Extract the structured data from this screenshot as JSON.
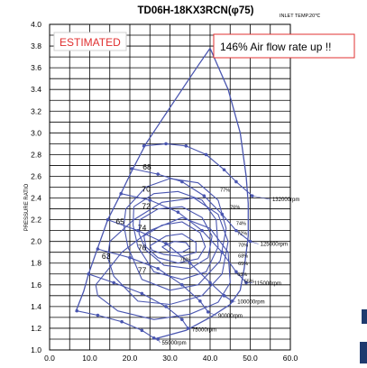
{
  "chart_data": {
    "type": "line",
    "title": "TD06H-18KX3RCN(φ75)",
    "subtitle": "INLET TEMP.20℃",
    "xlabel": "",
    "ylabel": "PRESSURE RATIO",
    "xlim": [
      0,
      60
    ],
    "ylim": [
      1.0,
      4.0
    ],
    "x_ticks": [
      "0.0",
      "10.0",
      "20.0",
      "30.0",
      "40.0",
      "50.0",
      "60.0"
    ],
    "y_ticks": [
      "1.0",
      "1.2",
      "1.4",
      "1.6",
      "1.8",
      "2.0",
      "2.2",
      "2.4",
      "2.6",
      "2.8",
      "3.0",
      "3.2",
      "3.4",
      "3.6",
      "3.8",
      "4.0"
    ],
    "grid": true,
    "annotations": {
      "estimated": "ESTIMATED",
      "airflow": "146% Air flow rate up !!"
    },
    "colors": {
      "curve": "#4a56b0",
      "estimated": "#e03030",
      "grid": "#000000"
    },
    "surge_line": [
      [
        6.5,
        1.35
      ],
      [
        8.5,
        1.54
      ],
      [
        9.7,
        1.7
      ],
      [
        11.8,
        1.92
      ],
      [
        14.5,
        2.2
      ],
      [
        17.5,
        2.42
      ],
      [
        20.5,
        2.65
      ],
      [
        24,
        2.9
      ],
      [
        28.5,
        3.15
      ],
      [
        33,
        3.4
      ],
      [
        37,
        3.62
      ],
      [
        40,
        3.78
      ]
    ],
    "choke_line": [
      [
        40,
        3.78
      ],
      [
        44.5,
        3.4
      ],
      [
        47.5,
        3.0
      ],
      [
        49,
        2.6
      ],
      [
        49.5,
        2.35
      ],
      [
        49.5,
        2.05
      ],
      [
        48.5,
        1.75
      ],
      [
        47.5,
        1.55
      ],
      [
        45,
        1.42
      ],
      [
        40,
        1.3
      ],
      [
        34,
        1.18
      ],
      [
        26,
        1.1
      ]
    ],
    "speed_lines": [
      {
        "label": "55000rpm",
        "label_pos": [
          28,
          1.05
        ],
        "points": [
          [
            6.8,
            1.36
          ],
          [
            12,
            1.32
          ],
          [
            18,
            1.26
          ],
          [
            23,
            1.18
          ],
          [
            26,
            1.11
          ],
          [
            27,
            1.1
          ]
        ]
      },
      {
        "label": "75000rpm",
        "label_pos": [
          35.5,
          1.17
        ],
        "points": [
          [
            9.7,
            1.7
          ],
          [
            16,
            1.62
          ],
          [
            23,
            1.52
          ],
          [
            29,
            1.4
          ],
          [
            33,
            1.28
          ],
          [
            34.5,
            1.2
          ]
        ]
      },
      {
        "label": "90000rpm",
        "label_pos": [
          42,
          1.3
        ],
        "points": [
          [
            12,
            1.93
          ],
          [
            20,
            1.85
          ],
          [
            27,
            1.75
          ],
          [
            33,
            1.6
          ],
          [
            37.5,
            1.45
          ],
          [
            39.5,
            1.35
          ]
        ]
      },
      {
        "label": "100000rpm",
        "label_pos": [
          46.8,
          1.43
        ],
        "points": [
          [
            14.5,
            2.2
          ],
          [
            22,
            2.1
          ],
          [
            29,
            1.98
          ],
          [
            35,
            1.8
          ],
          [
            40,
            1.62
          ],
          [
            43.5,
            1.5
          ],
          [
            45.5,
            1.45
          ]
        ]
      },
      {
        "label": "115000rpm",
        "label_pos": [
          51,
          1.6
        ],
        "points": [
          [
            17.8,
            2.44
          ],
          [
            25,
            2.38
          ],
          [
            32,
            2.27
          ],
          [
            38,
            2.1
          ],
          [
            43,
            1.9
          ],
          [
            46.5,
            1.72
          ],
          [
            49,
            1.62
          ]
        ]
      },
      {
        "label": "125000rpm",
        "label_pos": [
          52.5,
          1.96
        ],
        "points": [
          [
            20.5,
            2.67
          ],
          [
            27,
            2.62
          ],
          [
            33,
            2.55
          ],
          [
            38.5,
            2.42
          ],
          [
            43,
            2.25
          ],
          [
            46.5,
            2.1
          ],
          [
            50,
            2.0
          ]
        ]
      },
      {
        "label": "132000rpm",
        "label_pos": [
          55.5,
          2.37
        ],
        "points": [
          [
            23.5,
            2.88
          ],
          [
            29,
            2.9
          ],
          [
            34,
            2.88
          ],
          [
            39,
            2.8
          ],
          [
            43.5,
            2.66
          ],
          [
            46.5,
            2.55
          ],
          [
            50.5,
            2.42
          ]
        ]
      }
    ],
    "efficiency_islands": [
      {
        "label": "63",
        "label_pos": [
          13,
          1.84
        ],
        "points": [
          [
            11.5,
            1.6
          ],
          [
            18,
            1.9
          ],
          [
            25,
            2.1
          ],
          [
            33,
            2.22
          ],
          [
            40,
            2.12
          ],
          [
            44.5,
            1.9
          ],
          [
            45,
            1.62
          ],
          [
            42,
            1.44
          ],
          [
            35,
            1.33
          ],
          [
            26,
            1.28
          ],
          [
            17,
            1.36
          ],
          [
            12,
            1.5
          ],
          [
            11.5,
            1.6
          ]
        ]
      },
      {
        "label": "65",
        "label_pos": [
          16.5,
          2.16
        ],
        "points": [
          [
            15,
            2.0
          ],
          [
            21,
            2.2
          ],
          [
            28,
            2.36
          ],
          [
            36,
            2.4
          ],
          [
            42,
            2.25
          ],
          [
            44.5,
            2.0
          ],
          [
            43,
            1.7
          ],
          [
            38,
            1.5
          ],
          [
            30,
            1.42
          ],
          [
            22,
            1.45
          ],
          [
            16,
            1.68
          ],
          [
            14.5,
            1.85
          ],
          [
            15,
            2.0
          ]
        ]
      },
      {
        "label": "68",
        "label_pos": [
          23.2,
          2.66
        ],
        "points": [
          [
            19,
            2.3
          ],
          [
            24,
            2.5
          ],
          [
            30,
            2.58
          ],
          [
            37,
            2.54
          ],
          [
            42,
            2.38
          ],
          [
            44,
            2.12
          ],
          [
            42.5,
            1.82
          ],
          [
            37,
            1.6
          ],
          [
            30,
            1.55
          ],
          [
            23,
            1.65
          ],
          [
            19.5,
            1.95
          ],
          [
            18.5,
            2.15
          ],
          [
            19,
            2.3
          ]
        ]
      },
      {
        "label": "70",
        "label_pos": [
          23,
          2.46
        ],
        "points": [
          [
            21,
            2.32
          ],
          [
            26,
            2.44
          ],
          [
            32,
            2.46
          ],
          [
            38,
            2.38
          ],
          [
            41.5,
            2.2
          ],
          [
            42,
            1.95
          ],
          [
            39,
            1.72
          ],
          [
            33,
            1.65
          ],
          [
            26,
            1.72
          ],
          [
            22,
            1.95
          ],
          [
            20.8,
            2.15
          ],
          [
            21,
            2.32
          ]
        ]
      },
      {
        "label": "72",
        "label_pos": [
          23,
          2.3
        ],
        "points": [
          [
            22.5,
            2.2
          ],
          [
            27,
            2.3
          ],
          [
            33,
            2.32
          ],
          [
            38,
            2.22
          ],
          [
            40.5,
            2.05
          ],
          [
            39.5,
            1.85
          ],
          [
            35,
            1.75
          ],
          [
            28.5,
            1.78
          ],
          [
            24,
            1.92
          ],
          [
            22.3,
            2.07
          ],
          [
            22.5,
            2.2
          ]
        ]
      },
      {
        "label": "74",
        "label_pos": [
          22,
          2.1
        ],
        "points": [
          [
            23.5,
            2.05
          ],
          [
            28,
            2.15
          ],
          [
            33,
            2.18
          ],
          [
            37.5,
            2.08
          ],
          [
            38.8,
            1.95
          ],
          [
            37,
            1.84
          ],
          [
            32,
            1.8
          ],
          [
            27,
            1.85
          ],
          [
            24,
            1.95
          ],
          [
            23.5,
            2.05
          ]
        ]
      },
      {
        "label": "76",
        "label_pos": [
          22,
          1.92
        ],
        "points": [
          [
            25,
            1.96
          ],
          [
            29,
            2.05
          ],
          [
            33,
            2.07
          ],
          [
            36.5,
            1.99
          ],
          [
            36.5,
            1.9
          ],
          [
            33,
            1.86
          ],
          [
            28.5,
            1.88
          ],
          [
            25.5,
            1.92
          ],
          [
            25,
            1.96
          ]
        ]
      },
      {
        "label": "77",
        "label_pos": [
          22,
          1.71
        ],
        "points": [
          [
            28,
            1.95
          ],
          [
            31,
            2.0
          ],
          [
            34,
            1.99
          ],
          [
            35,
            1.94
          ],
          [
            33,
            1.9
          ],
          [
            30,
            1.9
          ],
          [
            28,
            1.95
          ]
        ]
      }
    ],
    "right_labels": [
      {
        "text": "77%",
        "pos": [
          42.5,
          2.46
        ]
      },
      {
        "text": "76%",
        "pos": [
          45,
          2.3
        ]
      },
      {
        "text": "74%",
        "pos": [
          46.5,
          2.15
        ]
      },
      {
        "text": "72%",
        "pos": [
          46.8,
          2.06
        ]
      },
      {
        "text": "70%",
        "pos": [
          47,
          1.95
        ]
      },
      {
        "text": "68%",
        "pos": [
          47,
          1.85
        ]
      },
      {
        "text": "65%",
        "pos": [
          47,
          1.78
        ]
      },
      {
        "text": "63%",
        "pos": [
          46.8,
          1.68
        ]
      },
      {
        "text": "55%",
        "pos": [
          48.5,
          1.62
        ]
      },
      {
        "text": "78%",
        "pos": [
          32.5,
          1.82
        ]
      }
    ]
  }
}
